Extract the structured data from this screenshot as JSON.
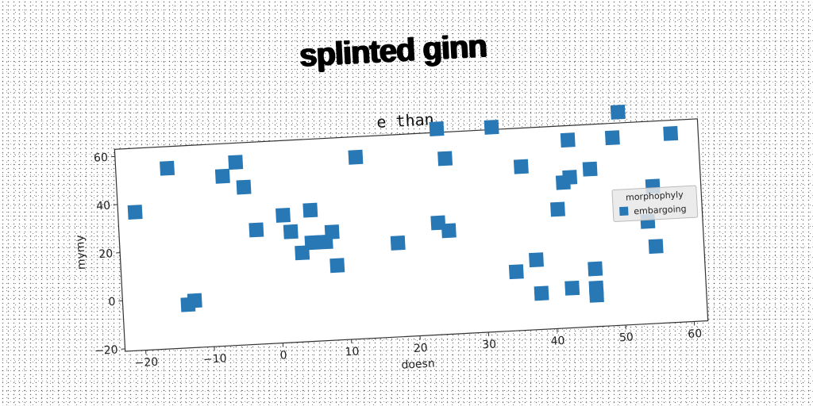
{
  "title": "splinted ginn",
  "chart_data": {
    "type": "scatter",
    "subtitle": "e than",
    "xlabel": "doesn",
    "ylabel": "mymy",
    "xlim": [
      -23,
      62
    ],
    "ylim": [
      -21,
      63
    ],
    "xticks": [
      -20,
      -10,
      0,
      10,
      20,
      30,
      40,
      50,
      60
    ],
    "yticks": [
      -20,
      0,
      20,
      40,
      60
    ],
    "grid": false,
    "legend": {
      "title": "morphophyly",
      "position": "right"
    },
    "series": [
      {
        "name": "embargoing",
        "color": "#2878b5",
        "marker": "square",
        "points": [
          [
            -20.5,
            36.5
          ],
          [
            -15.5,
            54
          ],
          [
            -13.5,
            -3
          ],
          [
            -12.5,
            -1.5
          ],
          [
            -7.5,
            49.5
          ],
          [
            -5.5,
            55
          ],
          [
            -4.5,
            44.5
          ],
          [
            -3,
            26.5
          ],
          [
            1,
            32
          ],
          [
            2,
            25
          ],
          [
            3.5,
            16
          ],
          [
            5,
            33.5
          ],
          [
            5,
            20
          ],
          [
            7,
            20
          ],
          [
            8,
            24
          ],
          [
            8.5,
            10
          ],
          [
            12,
            54.5
          ],
          [
            17.5,
            18
          ],
          [
            23.5,
            25.5
          ],
          [
            24,
            64.5
          ],
          [
            25,
            22
          ],
          [
            25,
            52
          ],
          [
            32,
            64
          ],
          [
            34.5,
            3.5
          ],
          [
            36,
            47
          ],
          [
            37.5,
            8
          ],
          [
            38,
            -6
          ],
          [
            41,
            28.5
          ],
          [
            42,
            39.5
          ],
          [
            42.5,
            -4.5
          ],
          [
            43,
            41.5
          ],
          [
            43,
            57
          ],
          [
            46,
            44.5
          ],
          [
            46,
            3
          ],
          [
            46,
            -5
          ],
          [
            46,
            -8
          ],
          [
            49.5,
            57
          ],
          [
            50.5,
            67.5
          ],
          [
            54,
            21.5
          ],
          [
            55,
            36
          ],
          [
            55,
            11
          ],
          [
            58,
            57.5
          ]
        ]
      }
    ]
  }
}
